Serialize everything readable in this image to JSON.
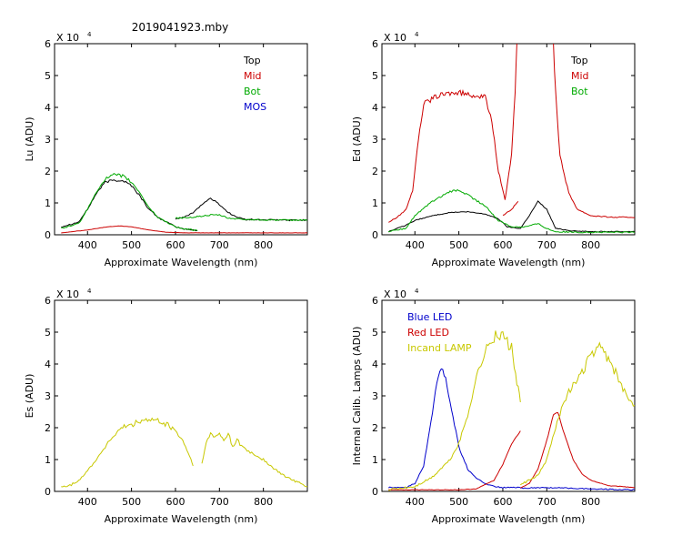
{
  "figure": {
    "title": "2019041923.mby"
  },
  "chart_data": [
    {
      "type": "line",
      "ylabel": "Lu (ADU)",
      "xlabel": "Approximate Wavelength (nm)",
      "xlim": [
        325,
        900
      ],
      "ylim": [
        0,
        6
      ],
      "y_multiplier": "X 10",
      "y_exponent": "4",
      "xticks": [
        400,
        500,
        600,
        700,
        800
      ],
      "yticks": [
        0,
        1,
        2,
        3,
        4,
        5,
        6
      ],
      "legend": [
        "Top",
        "Mid",
        "Bot",
        "MOS"
      ],
      "legend_colors": [
        "#000000",
        "#cc0000",
        "#00aa00",
        "#0000cc"
      ],
      "series": [
        {
          "name": "Top",
          "color": "#000000",
          "noise": 0.05,
          "x": [
            340,
            380,
            400,
            420,
            440,
            460,
            480,
            500,
            520,
            540,
            560,
            580,
            600,
            620,
            640,
            650,
            0,
            600,
            620,
            640,
            660,
            680,
            700,
            720,
            740,
            760,
            800,
            850,
            900
          ],
          "y": [
            0.25,
            0.4,
            0.8,
            1.3,
            1.65,
            1.72,
            1.7,
            1.55,
            1.2,
            0.8,
            0.55,
            0.4,
            0.25,
            0.18,
            0.15,
            0.13,
            null,
            0.5,
            0.55,
            0.7,
            0.95,
            1.15,
            0.95,
            0.7,
            0.55,
            0.48,
            0.47,
            0.46,
            0.46
          ]
        },
        {
          "name": "Mid",
          "color": "#cc0000",
          "noise": 0.01,
          "x": [
            340,
            400,
            440,
            470,
            500,
            540,
            580,
            620,
            700,
            800,
            900
          ],
          "y": [
            0.06,
            0.15,
            0.24,
            0.28,
            0.25,
            0.15,
            0.08,
            0.06,
            0.06,
            0.06,
            0.06
          ]
        },
        {
          "name": "Bot",
          "color": "#00aa00",
          "noise": 0.05,
          "x": [
            340,
            380,
            400,
            420,
            440,
            460,
            480,
            500,
            520,
            540,
            560,
            580,
            600,
            620,
            640,
            650,
            0,
            600,
            640,
            680,
            700,
            720,
            760,
            800,
            850,
            900
          ],
          "y": [
            0.2,
            0.35,
            0.8,
            1.35,
            1.75,
            1.88,
            1.85,
            1.65,
            1.3,
            0.85,
            0.55,
            0.4,
            0.25,
            0.18,
            0.15,
            0.13,
            null,
            0.52,
            0.55,
            0.62,
            0.62,
            0.52,
            0.48,
            0.47,
            0.46,
            0.46
          ]
        },
        {
          "name": "MOS",
          "color": "#0000cc",
          "noise": 0,
          "x": [],
          "y": []
        }
      ]
    },
    {
      "type": "line",
      "ylabel": "Ed  (ADU)",
      "xlabel": "Approximate Wavelength (nm)",
      "xlim": [
        325,
        900
      ],
      "ylim": [
        0,
        6
      ],
      "y_multiplier": "X 10",
      "y_exponent": "4",
      "xticks": [
        400,
        500,
        600,
        700,
        800
      ],
      "yticks": [
        0,
        1,
        2,
        3,
        4,
        5,
        6
      ],
      "legend": [
        "Top",
        "Mid",
        "Bot"
      ],
      "legend_colors": [
        "#000000",
        "#cc0000",
        "#00aa00"
      ],
      "series": [
        {
          "name": "Top",
          "color": "#000000",
          "noise": 0.03,
          "x": [
            340,
            380,
            400,
            440,
            480,
            520,
            560,
            590,
            610,
            640,
            660,
            680,
            700,
            720,
            760,
            800,
            900
          ],
          "y": [
            0.1,
            0.3,
            0.45,
            0.6,
            0.7,
            0.72,
            0.65,
            0.5,
            0.25,
            0.2,
            0.6,
            1.05,
            0.8,
            0.2,
            0.12,
            0.1,
            0.1
          ]
        },
        {
          "name": "Mid",
          "color": "#cc0000",
          "noise": 0.04,
          "x": [
            340,
            360,
            380,
            395,
            405,
            420,
            450,
            480,
            500,
            530,
            560,
            575,
            590,
            605,
            620,
            628,
            632,
            0,
            600,
            620,
            635,
            0,
            715,
            720,
            730,
            750,
            770,
            800,
            850,
            900
          ],
          "y": [
            0.4,
            0.55,
            0.8,
            1.4,
            2.7,
            4.1,
            4.35,
            4.45,
            4.45,
            4.4,
            4.3,
            3.6,
            2.0,
            1.1,
            2.5,
            4.5,
            6.0,
            null,
            0.6,
            0.8,
            1.05,
            null,
            6.0,
            4.5,
            2.5,
            1.3,
            0.8,
            0.6,
            0.55,
            0.55
          ]
        },
        {
          "name": "Bot",
          "color": "#00aa00",
          "noise": 0.05,
          "x": [
            340,
            380,
            400,
            440,
            480,
            500,
            520,
            560,
            590,
            620,
            650,
            680,
            700,
            720,
            760,
            900
          ],
          "y": [
            0.1,
            0.2,
            0.6,
            1.05,
            1.35,
            1.4,
            1.25,
            0.9,
            0.45,
            0.25,
            0.25,
            0.35,
            0.2,
            0.1,
            0.08,
            0.08
          ]
        }
      ]
    },
    {
      "type": "line",
      "ylabel": "Es  (ADU)",
      "xlabel": "Approximate Wavelength (nm)",
      "xlim": [
        325,
        900
      ],
      "ylim": [
        0,
        6
      ],
      "y_multiplier": "X 10",
      "y_exponent": "4",
      "xticks": [
        400,
        500,
        600,
        700,
        800
      ],
      "yticks": [
        0,
        1,
        2,
        3,
        4,
        5,
        6
      ],
      "legend": [],
      "legend_colors": [],
      "series": [
        {
          "name": "",
          "color": "#c8c800",
          "noise": 0.08,
          "x": [
            340,
            360,
            380,
            400,
            420,
            440,
            460,
            480,
            500,
            520,
            540,
            560,
            580,
            600,
            620,
            635,
            640,
            0,
            660,
            670,
            680,
            690,
            700,
            710,
            720,
            730,
            740,
            760,
            780,
            800,
            820,
            840,
            860,
            900
          ],
          "y": [
            0.15,
            0.18,
            0.35,
            0.65,
            1.0,
            1.4,
            1.75,
            2.0,
            2.1,
            2.2,
            2.25,
            2.2,
            2.1,
            1.9,
            1.5,
            1.0,
            0.8,
            null,
            0.9,
            1.5,
            1.8,
            1.7,
            1.8,
            1.6,
            1.85,
            1.4,
            1.6,
            1.3,
            1.15,
            1.0,
            0.75,
            0.55,
            0.4,
            0.15
          ]
        }
      ]
    },
    {
      "type": "line",
      "ylabel": "Internal Calib. Lamps (ADU)",
      "xlabel": "Approximate Wavelength (nm)",
      "xlim": [
        325,
        900
      ],
      "ylim": [
        0,
        6
      ],
      "y_multiplier": "X 10",
      "y_exponent": "4",
      "xticks": [
        400,
        500,
        600,
        700,
        800
      ],
      "yticks": [
        0,
        1,
        2,
        3,
        4,
        5,
        6
      ],
      "legend": [
        "Blue LED",
        "Red LED",
        "Incand LAMP"
      ],
      "legend_colors": [
        "#0000cc",
        "#cc0000",
        "#c8c800"
      ],
      "series": [
        {
          "name": "Blue LED",
          "color": "#0000cc",
          "noise": 0.04,
          "x": [
            340,
            380,
            400,
            420,
            440,
            450,
            460,
            470,
            480,
            500,
            520,
            540,
            560,
            580,
            600,
            640,
            0,
            640,
            700,
            800,
            900
          ],
          "y": [
            0.12,
            0.12,
            0.25,
            0.8,
            2.5,
            3.4,
            3.9,
            3.6,
            2.8,
            1.4,
            0.7,
            0.4,
            0.25,
            0.15,
            0.12,
            0.12,
            null,
            0.1,
            0.12,
            0.08,
            0.05
          ]
        },
        {
          "name": "Red LED",
          "color": "#cc0000",
          "noise": 0.02,
          "x": [
            340,
            500,
            540,
            580,
            600,
            620,
            640,
            0,
            640,
            660,
            680,
            700,
            715,
            725,
            740,
            760,
            780,
            800,
            840,
            900
          ],
          "y": [
            0.05,
            0.05,
            0.08,
            0.35,
            0.85,
            1.5,
            1.9,
            null,
            0.1,
            0.25,
            0.7,
            1.6,
            2.4,
            2.5,
            1.8,
            1.0,
            0.55,
            0.35,
            0.18,
            0.12
          ]
        },
        {
          "name": "Incand LAMP",
          "color": "#c8c800",
          "noise": 0.08,
          "x": [
            340,
            400,
            440,
            480,
            500,
            520,
            540,
            560,
            580,
            600,
            620,
            635,
            640,
            0,
            640,
            680,
            700,
            720,
            740,
            760,
            780,
            800,
            820,
            840,
            860,
            880,
            900
          ],
          "y": [
            0.05,
            0.15,
            0.45,
            1.0,
            1.5,
            2.4,
            3.6,
            4.4,
            4.85,
            4.9,
            4.5,
            3.2,
            2.8,
            null,
            0.2,
            0.5,
            1.0,
            2.0,
            2.9,
            3.3,
            3.7,
            4.3,
            4.5,
            4.2,
            3.6,
            3.0,
            2.7
          ]
        }
      ]
    }
  ]
}
